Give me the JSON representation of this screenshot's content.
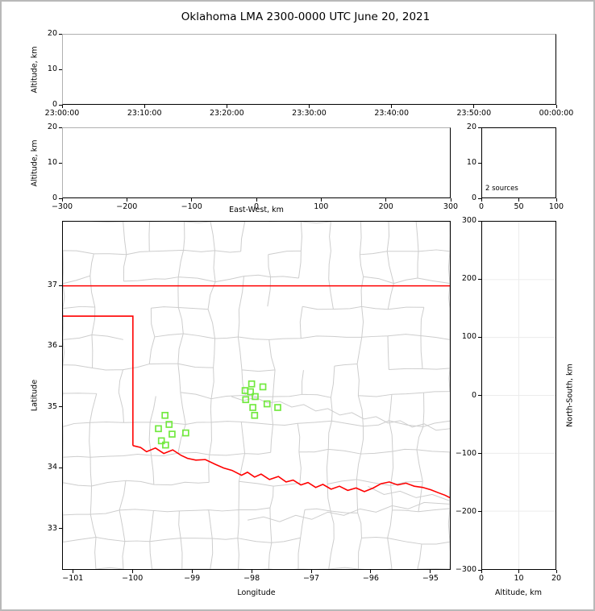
{
  "colors": {
    "background": "#ffffff",
    "figure_frame": "#b9b9b9",
    "axis_spine": "#000000",
    "faint_spine": "#b0b0b0",
    "county_lines": "#cdcdcd",
    "state_border": "#ff0000",
    "station_marker": "#72e93f",
    "gridline": "#ececec"
  },
  "chart_data": {
    "type": "scatter",
    "title": "Oklahoma LMA 2300-0000 UTC June 20, 2021",
    "panels": [
      {
        "name": "time_height",
        "ylabel": "Altitude, km",
        "ylim": [
          0,
          20
        ],
        "yticks": [
          0,
          10,
          20
        ],
        "xtick_labels": [
          "23:00:00",
          "23:10:00",
          "23:20:00",
          "23:30:00",
          "23:40:00",
          "23:50:00",
          "00:00:00"
        ],
        "points": []
      },
      {
        "name": "ew_height",
        "xlabel": "East-West, km",
        "ylabel": "Altitude, km",
        "xlim": [
          -300,
          300
        ],
        "xticks": [
          -300,
          -200,
          -100,
          0,
          100,
          200,
          300
        ],
        "ylim": [
          0,
          20
        ],
        "yticks": [
          0,
          10,
          20
        ],
        "points": []
      },
      {
        "name": "altitude_source_histogram",
        "annotation": "2 sources",
        "xlim": [
          0,
          100
        ],
        "xticks": [
          0,
          50,
          100
        ],
        "ylim": [
          0,
          20
        ],
        "yticks": [
          0,
          10,
          20
        ],
        "points": []
      },
      {
        "name": "plan_view_map",
        "xlabel": "Longitude",
        "ylabel": "Latitude",
        "xlim": [
          -101.18,
          -94.66
        ],
        "xticks": [
          -101,
          -100,
          -99,
          -98,
          -97,
          -96,
          -95
        ],
        "ylim": [
          32.32,
          38.06
        ],
        "yticks": [
          33,
          34,
          35,
          36,
          37
        ],
        "stations_lonlat": [
          [
            -98.0,
            35.38
          ],
          [
            -97.81,
            35.33
          ],
          [
            -98.11,
            35.27
          ],
          [
            -98.02,
            35.25
          ],
          [
            -97.94,
            35.17
          ],
          [
            -98.1,
            35.12
          ],
          [
            -97.74,
            35.05
          ],
          [
            -97.98,
            34.99
          ],
          [
            -97.56,
            34.99
          ],
          [
            -97.95,
            34.86
          ],
          [
            -99.46,
            34.86
          ],
          [
            -99.39,
            34.71
          ],
          [
            -99.57,
            34.64
          ],
          [
            -99.34,
            34.55
          ],
          [
            -99.11,
            34.57
          ],
          [
            -99.52,
            34.44
          ],
          [
            -99.45,
            34.37
          ]
        ],
        "state_border": {
          "north_lat": 37.0,
          "panhandle_south_lat": 36.5,
          "panhandle_east_lon": -100.0,
          "red_river_lonlat": [
            [
              -100.0,
              34.36
            ],
            [
              -99.87,
              34.33
            ],
            [
              -99.77,
              34.26
            ],
            [
              -99.62,
              34.32
            ],
            [
              -99.48,
              34.23
            ],
            [
              -99.33,
              34.29
            ],
            [
              -99.19,
              34.2
            ],
            [
              -99.08,
              34.15
            ],
            [
              -98.94,
              34.12
            ],
            [
              -98.78,
              34.13
            ],
            [
              -98.61,
              34.05
            ],
            [
              -98.47,
              33.99
            ],
            [
              -98.33,
              33.95
            ],
            [
              -98.17,
              33.87
            ],
            [
              -98.07,
              33.92
            ],
            [
              -97.95,
              33.84
            ],
            [
              -97.84,
              33.89
            ],
            [
              -97.7,
              33.8
            ],
            [
              -97.55,
              33.85
            ],
            [
              -97.42,
              33.76
            ],
            [
              -97.3,
              33.79
            ],
            [
              -97.17,
              33.71
            ],
            [
              -97.05,
              33.75
            ],
            [
              -96.92,
              33.67
            ],
            [
              -96.8,
              33.72
            ],
            [
              -96.66,
              33.64
            ],
            [
              -96.52,
              33.69
            ],
            [
              -96.38,
              33.62
            ],
            [
              -96.24,
              33.66
            ],
            [
              -96.1,
              33.6
            ],
            [
              -95.95,
              33.66
            ],
            [
              -95.82,
              33.73
            ],
            [
              -95.68,
              33.76
            ],
            [
              -95.54,
              33.71
            ],
            [
              -95.4,
              33.74
            ],
            [
              -95.26,
              33.69
            ],
            [
              -95.12,
              33.67
            ],
            [
              -94.98,
              33.63
            ],
            [
              -94.85,
              33.58
            ],
            [
              -94.74,
              33.54
            ],
            [
              -94.66,
              33.5
            ]
          ]
        }
      },
      {
        "name": "ns_height",
        "xlabel": "Altitude, km",
        "ylabel": "North-South, km",
        "xlim": [
          0,
          20
        ],
        "xticks": [
          0,
          10,
          20
        ],
        "ylim": [
          -300,
          300
        ],
        "yticks": [
          300,
          200,
          100,
          0,
          -100,
          -200,
          -300
        ],
        "gridlines": {
          "x": [
            10
          ],
          "y": [
            -200,
            -100,
            0,
            100,
            200
          ]
        },
        "points": []
      }
    ]
  }
}
